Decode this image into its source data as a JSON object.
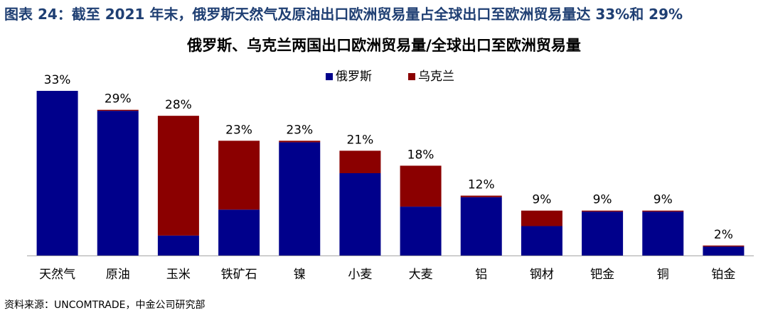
{
  "header": {
    "title": "图表 24：截至 2021 年末，俄罗斯天然气及原油出口欧洲贸易量占全球出口至欧洲贸易量达 33%和 29%",
    "subtitle": "俄罗斯、乌克兰两国出口欧洲贸易量/全球出口至欧洲贸易量"
  },
  "footer": {
    "source": "资料来源：UNCOMTRADE，中金公司研究部"
  },
  "colors": {
    "russia": "#00008b",
    "ukraine": "#8b0000",
    "axis": "#a6a6a6",
    "title": "#1f3f73"
  },
  "chart_data": {
    "type": "bar",
    "stacked": true,
    "categories": [
      "天然气",
      "原油",
      "玉米",
      "铁矿石",
      "镍",
      "小麦",
      "大麦",
      "铝",
      "钢材",
      "钯金",
      "铜",
      "铂金"
    ],
    "series": [
      {
        "name": "俄罗斯",
        "values": [
          33,
          29,
          4,
          9.2,
          22.7,
          16.5,
          9.8,
          11.7,
          5.9,
          8.8,
          8.8,
          1.8
        ]
      },
      {
        "name": "乌克兰",
        "values": [
          0,
          0.2,
          24,
          13.8,
          0.3,
          4.5,
          8.2,
          0.3,
          3.1,
          0.2,
          0.2,
          0.2
        ]
      }
    ],
    "data_labels": [
      "33%",
      "29%",
      "28%",
      "23%",
      "23%",
      "21%",
      "18%",
      "12%",
      "9%",
      "9%",
      "9%",
      "2%"
    ],
    "ylim": [
      0,
      33
    ],
    "legend": "top-center",
    "grid": false
  }
}
